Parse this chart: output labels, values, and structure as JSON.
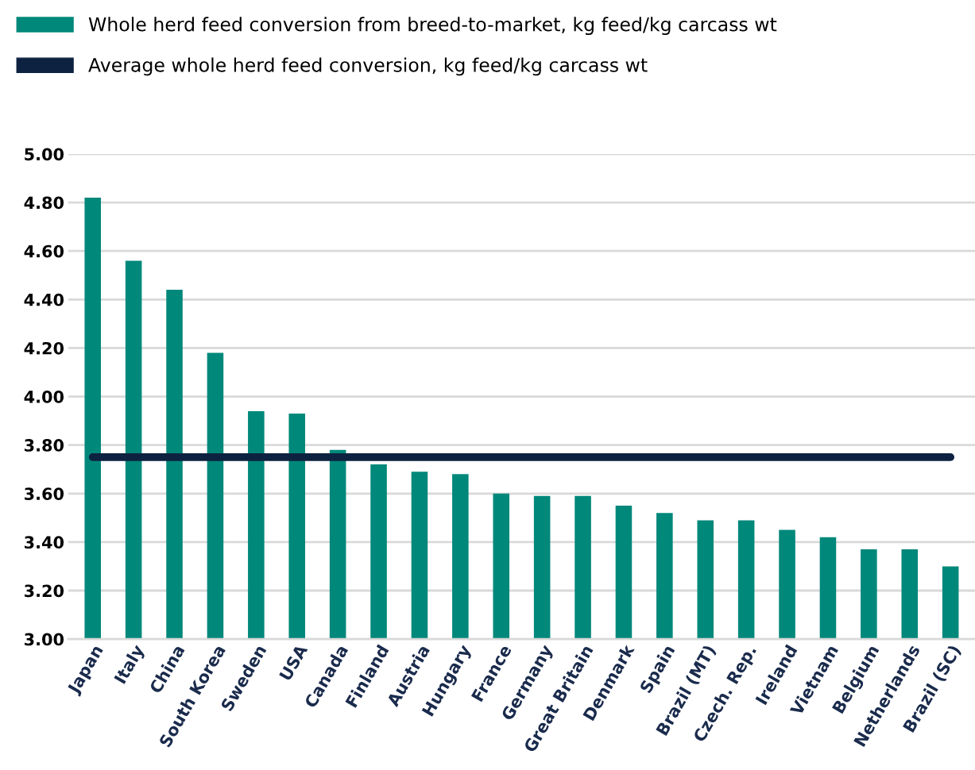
{
  "chart_data": {
    "type": "bar",
    "categories": [
      "Japan",
      "Italy",
      "China",
      "South Korea",
      "Sweden",
      "USA",
      "Canada",
      "Finland",
      "Austria",
      "Hungary",
      "France",
      "Germany",
      "Great Britain",
      "Denmark",
      "Spain",
      "Brazil (MT)",
      "Czech. Rep.",
      "Ireland",
      "Vietnam",
      "Belgium",
      "Netherlands",
      "Brazil (SC)"
    ],
    "series": [
      {
        "name": "Whole herd feed conversion from breed-to-market, kg feed/kg carcass wt",
        "color": "#00887a",
        "values": [
          4.82,
          4.56,
          4.44,
          4.18,
          3.94,
          3.93,
          3.78,
          3.72,
          3.69,
          3.68,
          3.6,
          3.59,
          3.59,
          3.55,
          3.52,
          3.49,
          3.49,
          3.45,
          3.42,
          3.37,
          3.37,
          3.3
        ]
      },
      {
        "name": "Average whole herd feed conversion, kg feed/kg carcass wt",
        "color": "#0d2240",
        "type": "line",
        "values": [
          3.75,
          3.75,
          3.75,
          3.75,
          3.75,
          3.75,
          3.75,
          3.75,
          3.75,
          3.75,
          3.75,
          3.75,
          3.75,
          3.75,
          3.75,
          3.75,
          3.75,
          3.75,
          3.75,
          3.75,
          3.75,
          3.75
        ]
      }
    ],
    "ylim": [
      3.0,
      5.0
    ],
    "yticks": [
      {
        "value": 3.0,
        "label": "3.00"
      },
      {
        "value": 3.2,
        "label": "3.20"
      },
      {
        "value": 3.4,
        "label": "3.40"
      },
      {
        "value": 3.6,
        "label": "3.60"
      },
      {
        "value": 3.8,
        "label": "3.80"
      },
      {
        "value": 4.0,
        "label": "4.00"
      },
      {
        "value": 4.2,
        "label": "4.20"
      },
      {
        "value": 4.4,
        "label": "4.40"
      },
      {
        "value": 4.6,
        "label": "4.60"
      },
      {
        "value": 4.8,
        "label": "4.80"
      },
      {
        "value": 5.0,
        "label": "5.00"
      }
    ],
    "grid": "y",
    "legend": "top left"
  }
}
